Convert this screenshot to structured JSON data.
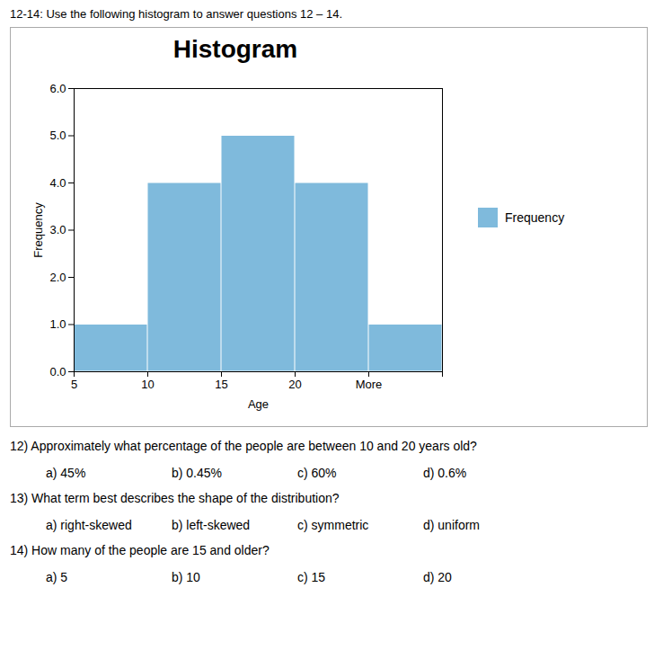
{
  "chart_data": {
    "type": "histogram",
    "title": "Histogram",
    "header": "12-14: Use the following histogram to answer questions 12 – 14.",
    "bins": [
      "5",
      "10",
      "15",
      "20",
      "More",
      null
    ],
    "series": [
      {
        "name": "Frequency",
        "color": "#7FBADC",
        "values": [
          1,
          4,
          5,
          4,
          1
        ]
      }
    ],
    "xlabel": "Age",
    "ylabel": "Frequency",
    "ylim": [
      0,
      6
    ],
    "yticks": [
      0,
      1,
      2,
      3,
      4,
      5,
      6
    ],
    "grid": false,
    "legend": "right",
    "questions": [
      {
        "text": "12) Approximately what percentage of the people are between 10 and 20 years old?",
        "choices": [
          "a) 45%",
          "b) 0.45%",
          "c) 60%",
          "d) 0.6%"
        ]
      },
      {
        "text": "13) What term best describes the shape of the distribution?",
        "choices": [
          "a) right-skewed",
          "b) left-skewed",
          "c) symmetric",
          "d) uniform"
        ]
      },
      {
        "text": "14) How many of the people are 15 and older?",
        "choices": [
          "a) 5",
          "b) 10",
          "c) 15",
          "d) 20"
        ]
      }
    ]
  }
}
